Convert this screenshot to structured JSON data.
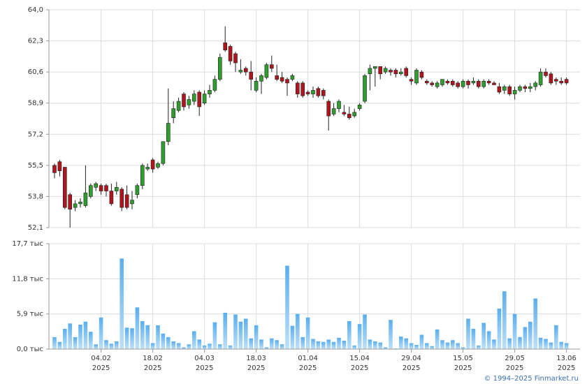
{
  "chart_data": [
    {
      "type": "candlestick",
      "open": [
        55.5,
        55.7,
        55.4,
        53.9,
        53.2,
        53.4,
        53.3,
        53.8,
        54.3,
        54.4,
        54.4,
        54.1,
        54.1,
        54.2,
        53.9,
        53.4,
        53.9,
        54.4,
        55.3,
        55.8,
        55.4,
        55.6,
        56.8,
        58.1,
        58.5,
        59.4,
        58.8,
        59.0,
        59.5,
        58.9,
        59.4,
        59.6,
        60.2,
        62.2,
        62.0,
        61.6,
        60.6,
        60.8,
        60.6,
        59.6,
        60.1,
        60.3,
        61.0,
        60.4,
        60.3,
        60.2,
        60.2,
        60.0,
        60.0,
        59.5,
        59.4,
        59.7,
        59.6,
        59.0,
        58.3,
        58.6,
        58.4,
        58.3,
        58.2,
        58.6,
        59.0,
        60.5,
        60.8,
        60.9,
        60.6,
        60.7,
        60.7,
        60.5,
        60.8,
        60.2,
        60.0,
        60.6,
        60.1,
        60.0,
        59.8,
        59.9,
        60.1,
        60.1,
        60.0,
        59.8,
        60.1,
        60.0,
        60.1,
        59.8,
        60.1,
        60.0,
        59.8,
        59.6,
        59.8,
        59.4,
        59.6,
        59.8,
        59.7,
        59.8,
        59.9,
        60.6,
        60.5,
        60.2,
        60.1,
        60.2
      ],
      "high": [
        55.6,
        55.8,
        55.4,
        54.0,
        53.6,
        53.7,
        55.5,
        54.5,
        54.6,
        54.5,
        54.5,
        54.5,
        54.6,
        54.3,
        54.4,
        54.1,
        54.5,
        55.6,
        55.6,
        55.9,
        55.7,
        56.8,
        59.7,
        59.0,
        59.2,
        59.5,
        59.3,
        59.6,
        59.6,
        59.6,
        59.9,
        60.4,
        61.6,
        63.1,
        62.1,
        61.7,
        61.3,
        60.9,
        61.2,
        60.3,
        60.5,
        61.1,
        61.5,
        61.0,
        60.6,
        60.3,
        60.5,
        60.1,
        60.1,
        59.6,
        59.8,
        59.8,
        59.7,
        59.1,
        58.9,
        59.1,
        58.8,
        58.7,
        58.6,
        58.9,
        60.5,
        61.0,
        60.9,
        60.9,
        60.9,
        60.8,
        60.8,
        60.8,
        60.9,
        60.3,
        60.8,
        60.7,
        60.2,
        60.1,
        60.1,
        60.2,
        60.2,
        60.2,
        60.1,
        60.2,
        60.2,
        60.3,
        60.2,
        60.2,
        60.2,
        60.1,
        60.0,
        59.9,
        59.9,
        59.8,
        59.9,
        59.9,
        60.0,
        60.1,
        60.8,
        60.8,
        60.6,
        60.3,
        60.3,
        60.3
      ],
      "low": [
        54.8,
        54.9,
        53.1,
        52.1,
        53.0,
        53.2,
        53.2,
        53.7,
        54.1,
        53.9,
        53.8,
        53.3,
        53.9,
        53.0,
        53.1,
        53.1,
        53.7,
        54.2,
        55.2,
        55.1,
        55.3,
        55.5,
        56.6,
        57.8,
        58.4,
        58.5,
        58.6,
        58.8,
        58.2,
        58.8,
        59.2,
        59.5,
        60.1,
        61.7,
        61.0,
        60.6,
        60.5,
        60.4,
        59.6,
        59.5,
        59.4,
        60.2,
        60.6,
        60.1,
        60.0,
        59.3,
        60.1,
        59.2,
        59.2,
        59.3,
        59.2,
        59.2,
        59.1,
        57.4,
        58.2,
        58.4,
        58.2,
        58.0,
        58.1,
        58.5,
        58.9,
        59.6,
        59.8,
        60.2,
        60.5,
        60.4,
        60.3,
        60.4,
        60.3,
        59.9,
        59.9,
        60.2,
        59.9,
        59.8,
        59.7,
        59.8,
        59.9,
        59.8,
        59.7,
        59.7,
        59.7,
        59.9,
        59.7,
        59.7,
        59.9,
        59.9,
        59.4,
        59.4,
        59.3,
        59.1,
        59.5,
        59.5,
        59.5,
        59.6,
        59.8,
        60.3,
        59.9,
        59.9,
        59.9,
        59.9
      ],
      "close": [
        55.1,
        55.2,
        53.2,
        53.1,
        53.4,
        53.5,
        54.0,
        54.4,
        54.5,
        54.1,
        54.1,
        53.4,
        54.3,
        53.2,
        53.2,
        53.6,
        54.4,
        55.5,
        55.4,
        55.3,
        55.6,
        56.8,
        57.8,
        58.6,
        59.0,
        58.7,
        59.1,
        59.4,
        58.7,
        59.4,
        59.6,
        60.2,
        61.4,
        61.8,
        61.2,
        61.1,
        60.7,
        60.6,
        60.2,
        60.1,
        60.4,
        61.0,
        60.8,
        60.2,
        60.1,
        60.0,
        60.4,
        59.4,
        59.3,
        59.4,
        59.6,
        59.3,
        59.3,
        58.2,
        58.6,
        59.0,
        58.3,
        58.1,
        58.4,
        58.8,
        60.4,
        60.8,
        60.9,
        60.5,
        60.8,
        60.6,
        60.5,
        60.6,
        60.4,
        60.1,
        60.7,
        60.3,
        60.0,
        59.9,
        60.0,
        60.2,
        60.0,
        59.9,
        59.8,
        60.1,
        59.9,
        60.1,
        59.8,
        60.1,
        60.0,
        59.9,
        59.5,
        59.8,
        59.4,
        59.6,
        59.8,
        59.7,
        59.8,
        60.0,
        60.6,
        60.4,
        60.0,
        60.1,
        60.0,
        60.0
      ],
      "up_color": "#2f9e2f",
      "down_color": "#b0141c",
      "ylim": [
        52.1,
        64.0
      ],
      "yticks": [
        {
          "value": 52.1,
          "label": "52,1"
        },
        {
          "value": 53.8,
          "label": "53,8"
        },
        {
          "value": 55.5,
          "label": "55,5"
        },
        {
          "value": 57.2,
          "label": "57,2"
        },
        {
          "value": 58.9,
          "label": "58,9"
        },
        {
          "value": 60.6,
          "label": "60,6"
        },
        {
          "value": 62.3,
          "label": "62,3"
        },
        {
          "value": 64.0,
          "label": "64,0"
        }
      ],
      "xticks": [
        {
          "value": 9,
          "label": "04.02",
          "sublabel": "2025"
        },
        {
          "value": 19,
          "label": "18.02",
          "sublabel": "2025"
        },
        {
          "value": 29,
          "label": "04.03",
          "sublabel": "2025"
        },
        {
          "value": 39,
          "label": "18.03",
          "sublabel": "2025"
        },
        {
          "value": 49,
          "label": "01.04",
          "sublabel": "2025"
        },
        {
          "value": 59,
          "label": "15.04",
          "sublabel": "2025"
        },
        {
          "value": 69,
          "label": "29.04",
          "sublabel": "2025"
        },
        {
          "value": 79,
          "label": "15.05",
          "sublabel": "2025"
        },
        {
          "value": 89,
          "label": "29.05",
          "sublabel": "2025"
        },
        {
          "value": 99,
          "label": "13.06",
          "sublabel": "2025"
        }
      ],
      "grid": true
    },
    {
      "type": "bar",
      "values": [
        2.0,
        1.2,
        3.4,
        4.3,
        2.0,
        4.1,
        4.6,
        2.9,
        0.8,
        5.3,
        1.5,
        0.9,
        1.3,
        15.2,
        3.6,
        3.5,
        7.0,
        4.7,
        4.0,
        1.0,
        4.0,
        2.6,
        2.0,
        1.3,
        1.0,
        0.3,
        0.8,
        3.0,
        1.6,
        0.6,
        0.9,
        4.5,
        0.8,
        6.1,
        0.6,
        5.8,
        4.6,
        5.1,
        1.8,
        4.0,
        1.6,
        0.3,
        1.8,
        1.5,
        0.8,
        14.0,
        3.9,
        5.9,
        2.0,
        5.3,
        1.7,
        1.3,
        1.2,
        1.6,
        1.2,
        1.9,
        1.4,
        4.7,
        0.6,
        4.2,
        5.8,
        1.6,
        1.3,
        1.1,
        0.3,
        4.9,
        0.1,
        2.1,
        1.8,
        1.0,
        0.7,
        2.4,
        1.0,
        0.5,
        3.3,
        1.5,
        1.1,
        1.5,
        1.0,
        0.3,
        5.1,
        3.4,
        0.6,
        4.4,
        3.0,
        1.6,
        6.8,
        9.7,
        1.8,
        5.9,
        2.0,
        3.7,
        4.6,
        8.5,
        1.9,
        1.7,
        1.1,
        4.0,
        1.2,
        1.0
      ],
      "color": "#7cc0f2",
      "ylim": [
        0,
        17.7
      ],
      "yticks": [
        {
          "value": 0,
          "label": "0,0 тыс"
        },
        {
          "value": 5.9,
          "label": "5,9 тыс"
        },
        {
          "value": 11.8,
          "label": "11,8 тыс"
        },
        {
          "value": 17.7,
          "label": "17,7 тыс"
        }
      ],
      "grid": true
    }
  ],
  "footer": "© 1994–2025 Finmarket.ru"
}
